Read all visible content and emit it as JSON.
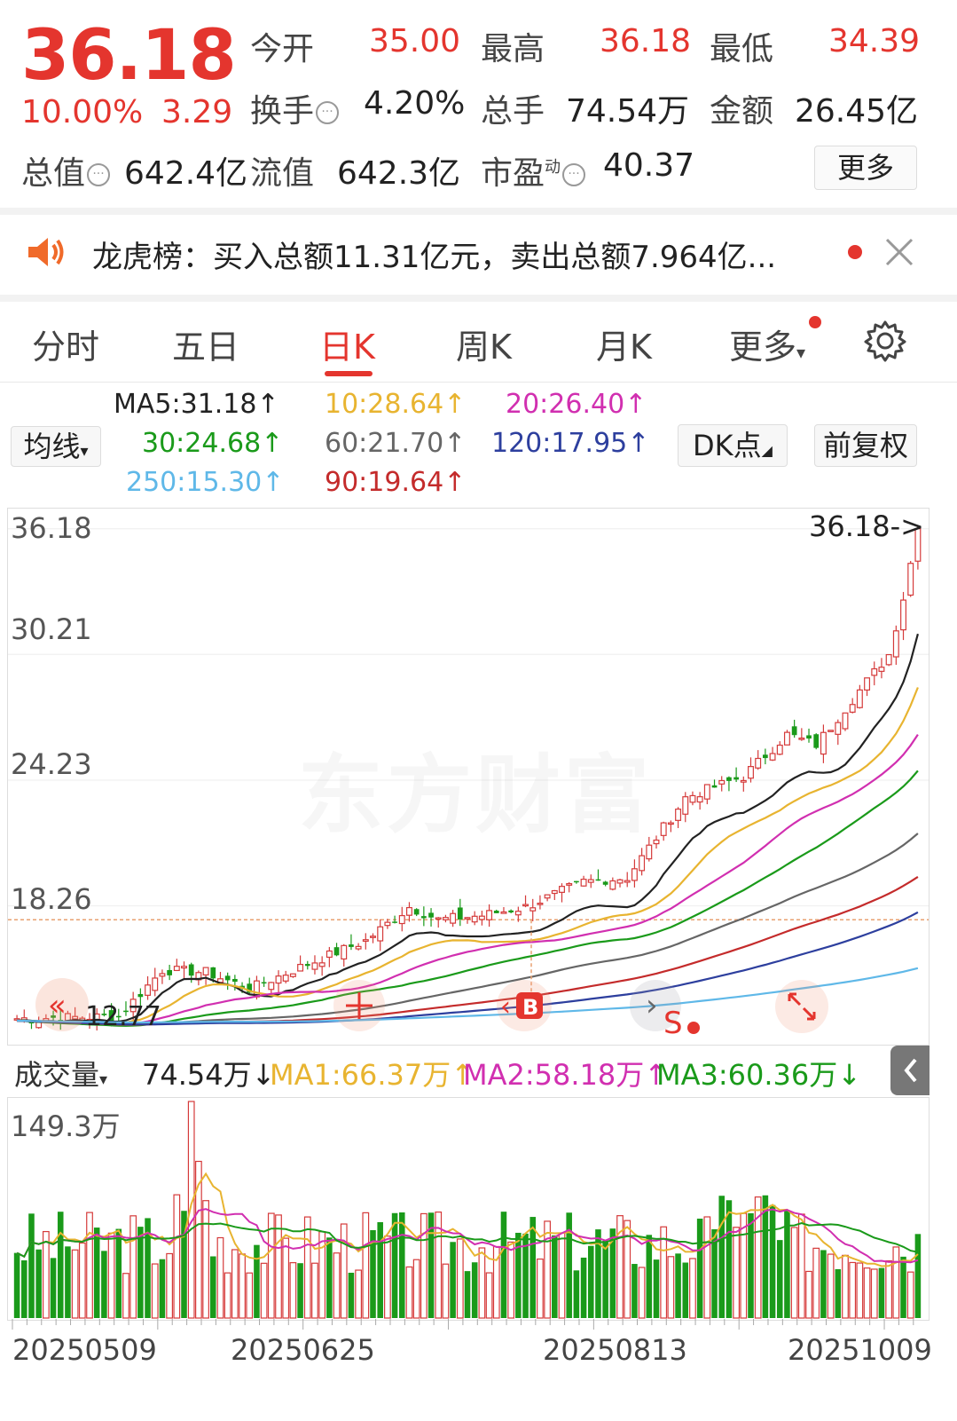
{
  "quote": {
    "price": "36.18",
    "change_pct": "10.00%",
    "change_amt": "3.29",
    "open_label": "今开",
    "open": "35.00",
    "high_label": "最高",
    "high": "36.18",
    "low_label": "最低",
    "low": "34.39",
    "turnover_label": "换手",
    "turnover": "4.20%",
    "volume_label": "总手",
    "volume": "74.54万",
    "amount_label": "金额",
    "amount": "26.45亿",
    "mktcap_label": "总值",
    "mktcap": "642.4亿",
    "float_label": "流值",
    "float_cap": "642.3亿",
    "pe_label": "市盈",
    "pe_sup": "动",
    "pe": "40.37",
    "more": "更多"
  },
  "news": {
    "text": "龙虎榜：买入总额11.31亿元，卖出总额7.964亿...",
    "icon": "speaker-icon"
  },
  "tabs": [
    "分时",
    "五日",
    "日K",
    "周K",
    "月K",
    "更多"
  ],
  "ma": {
    "selector": "均线",
    "ma5": "MA5:31.18↑",
    "ma10": "10:28.64↑",
    "ma20": "20:26.40↑",
    "ma30": "30:24.68↑",
    "ma60": "60:21.70↑",
    "ma120": "120:17.95↑",
    "ma250": "250:15.30↑",
    "ma90": "90:19.64↑",
    "dk_btn": "DK点",
    "adjust_btn": "前复权",
    "colors": {
      "ma5": "#222222",
      "ma10": "#e8b430",
      "ma20": "#d12fb0",
      "ma30": "#1a9a1a",
      "ma60": "#666666",
      "ma120": "#2d3f9e",
      "ma250": "#5fb8e8",
      "ma90": "#c42b2b"
    }
  },
  "kline": {
    "y_labels": [
      "36.18",
      "30.21",
      "24.23",
      "18.26"
    ],
    "last_price_label": "36.18->",
    "low_label": "12.77",
    "watermark": "东方财富"
  },
  "volume": {
    "selector": "成交量",
    "current": "74.54万↓",
    "ma1": "MA1:66.37万↑",
    "ma2": "MA2:58.18万↑",
    "ma3": "MA3:60.36万↓",
    "max_label": "149.3万"
  },
  "dates": [
    "20250509",
    "20250625",
    "20250813",
    "20251009"
  ],
  "chart_data": {
    "type": "bar",
    "title": "",
    "ylim": [
      12.77,
      36.18
    ],
    "categories": [
      "20250509",
      "20250625",
      "20250813",
      "20251009"
    ],
    "series": [
      {
        "name": "MA5",
        "values": [
          13.2,
          15.0,
          18.0,
          31.18
        ]
      },
      {
        "name": "MA10",
        "values": [
          13.1,
          14.6,
          17.6,
          28.64
        ]
      },
      {
        "name": "MA20",
        "values": [
          13.0,
          14.2,
          17.0,
          26.4
        ]
      },
      {
        "name": "MA30",
        "values": [
          13.0,
          13.9,
          16.5,
          24.68
        ]
      },
      {
        "name": "MA60",
        "values": [
          12.9,
          13.4,
          15.4,
          21.7
        ]
      },
      {
        "name": "MA90",
        "values": [
          12.9,
          13.2,
          14.8,
          19.64
        ]
      },
      {
        "name": "MA120",
        "values": [
          12.8,
          13.1,
          14.2,
          17.95
        ]
      },
      {
        "name": "MA250",
        "values": [
          12.8,
          12.9,
          13.4,
          15.3
        ]
      }
    ],
    "volume_max": 149.3
  }
}
